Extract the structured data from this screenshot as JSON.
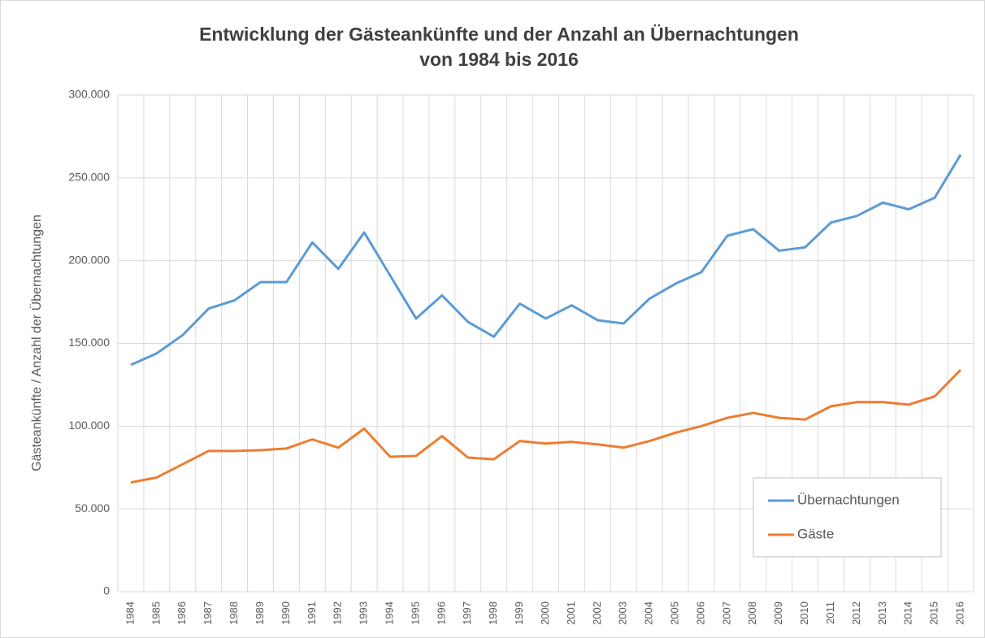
{
  "chart_data": {
    "type": "line",
    "title": [
      "Entwicklung der Gästeankünfte und der Anzahl an Übernachtungen",
      "von 1984 bis 2016"
    ],
    "y_label": "Gästeankünfte / Anzahl der Übernachtungen",
    "categories": [
      "1984",
      "1985",
      "1986",
      "1987",
      "1988",
      "1989",
      "1990",
      "1991",
      "1992",
      "1993",
      "1994",
      "1995",
      "1996",
      "1997",
      "1998",
      "1999",
      "2000",
      "2001",
      "2002",
      "2003",
      "2004",
      "2005",
      "2006",
      "2007",
      "2008",
      "2009",
      "2010",
      "2011",
      "2012",
      "2013",
      "2014",
      "2015",
      "2016"
    ],
    "series": [
      {
        "name": "Übernachtungen",
        "color": "#5b9bd5",
        "values": [
          137000,
          144000,
          155000,
          171000,
          176000,
          187000,
          187000,
          211000,
          195000,
          217000,
          191000,
          165000,
          179000,
          163000,
          154000,
          174000,
          165000,
          173000,
          164000,
          162000,
          177000,
          186000,
          193000,
          215000,
          219000,
          206000,
          208000,
          223000,
          227000,
          235000,
          231000,
          238000,
          264000
        ]
      },
      {
        "name": "Gäste",
        "color": "#ed7d31",
        "values": [
          66000,
          69000,
          77000,
          85000,
          85000,
          85500,
          86500,
          92000,
          87000,
          98500,
          81500,
          82000,
          94000,
          81000,
          80000,
          91000,
          89500,
          90500,
          89000,
          87000,
          91000,
          96000,
          100000,
          105000,
          108000,
          105000,
          104000,
          112000,
          114500,
          114500,
          113000,
          118000,
          134000
        ]
      }
    ],
    "ylim": [
      0,
      300000
    ],
    "yticks": [
      0,
      {
        "value": 50000,
        "label": "50.000"
      },
      {
        "value": 100000,
        "label": "100.000"
      },
      {
        "value": 150000,
        "label": "150.000"
      },
      {
        "value": 200000,
        "label": "200.000"
      },
      {
        "value": 250000,
        "label": "250.000"
      },
      {
        "value": 300000,
        "label": "300.000"
      }
    ],
    "grid": true,
    "legend": "lower right"
  }
}
